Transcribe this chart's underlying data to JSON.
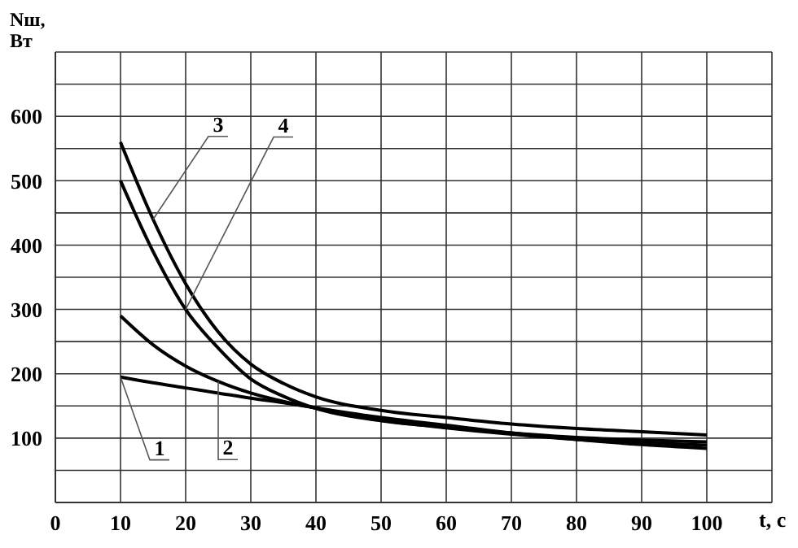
{
  "chart_data": {
    "type": "line",
    "xlabel": "t, c",
    "ylabel": "Nш, Вт",
    "x": [
      10,
      15,
      20,
      25,
      30,
      35,
      40,
      50,
      60,
      70,
      80,
      90,
      100
    ],
    "series": [
      {
        "name": "1",
        "color": "#000000",
        "values": [
          195,
          186,
          178,
          170,
          162,
          155,
          147,
          132,
          120,
          108,
          98,
          90,
          84
        ]
      },
      {
        "name": "2",
        "color": "#000000",
        "values": [
          290,
          245,
          212,
          188,
          170,
          157,
          147,
          128,
          116,
          106,
          98,
          93,
          89
        ]
      },
      {
        "name": "3",
        "color": "#000000",
        "values": [
          560,
          440,
          340,
          265,
          215,
          185,
          164,
          143,
          132,
          122,
          115,
          110,
          105
        ]
      },
      {
        "name": "4",
        "color": "#000000",
        "values": [
          500,
          390,
          300,
          240,
          192,
          165,
          146,
          127,
          117,
          108,
          101,
          97,
          94
        ]
      }
    ],
    "xlim": [
      0,
      110
    ],
    "xticks": [
      0,
      10,
      20,
      30,
      40,
      50,
      60,
      70,
      80,
      90,
      100,
      {
        "value": 110,
        "label": null
      }
    ],
    "ylim": [
      0,
      700
    ],
    "yticks": [
      {
        "value": 0,
        "label": null
      },
      {
        "value": 50,
        "label": null
      },
      100,
      {
        "value": 150,
        "label": null
      },
      200,
      {
        "value": 250,
        "label": null
      },
      300,
      {
        "value": 350,
        "label": null
      },
      400,
      {
        "value": 450,
        "label": null
      },
      500,
      {
        "value": 550,
        "label": null
      },
      600,
      {
        "value": 650,
        "label": null
      },
      {
        "value": 700,
        "label": null
      }
    ],
    "grid": true,
    "marker": "none",
    "line_style": "solid"
  }
}
